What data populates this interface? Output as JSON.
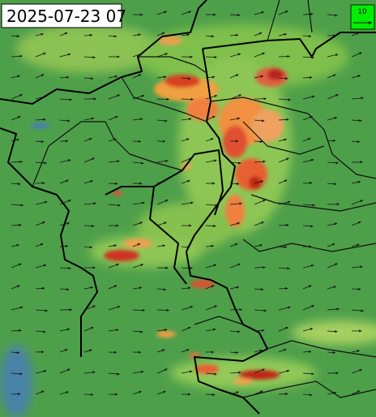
{
  "timestamp": "2025-07-23 07",
  "legend": {
    "label": "10"
  }
}
